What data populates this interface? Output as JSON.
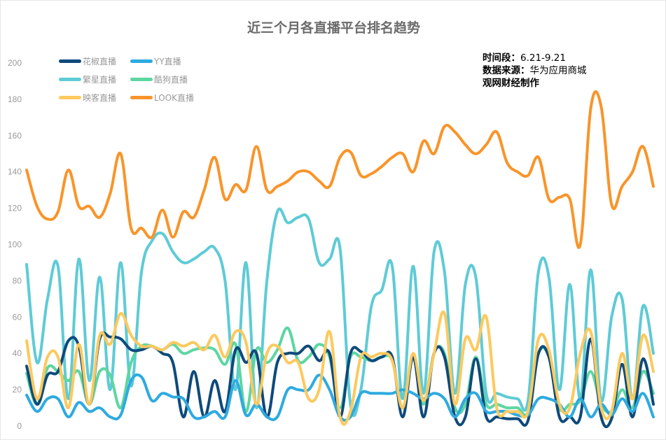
{
  "chart_data": {
    "type": "line",
    "title": "近三个月各直播平台排名趋势",
    "xlabel": "",
    "ylabel": "",
    "ylim": [
      0,
      200
    ],
    "yticks": [
      0,
      20,
      40,
      60,
      80,
      100,
      120,
      140,
      160,
      180,
      200
    ],
    "grid": false,
    "legend_position": "top-left",
    "annotations": {
      "period_label": "时间段：",
      "period_value": "6.21-9.21",
      "source_label": "数据来源：",
      "source_value": "华为应用商城",
      "credit": "观网财经制作"
    },
    "series": [
      {
        "name": "繁星直播",
        "color": "#5ECBD6",
        "values": [
          89,
          35,
          70,
          88,
          15,
          92,
          25,
          82,
          20,
          90,
          22,
          85,
          102,
          106,
          96,
          90,
          92,
          96,
          98,
          80,
          20,
          90,
          10,
          80,
          118,
          112,
          115,
          114,
          90,
          92,
          98,
          12,
          20,
          66,
          75,
          88,
          15,
          88,
          18,
          96,
          85,
          18,
          78,
          82,
          18,
          18,
          16,
          15,
          14,
          85,
          82,
          20,
          78,
          15,
          86,
          14,
          60,
          70,
          15,
          66,
          40
        ]
      },
      {
        "name": "酷狗直播",
        "color": "#5DD6A2",
        "values": [
          29,
          12,
          32,
          30,
          25,
          30,
          12,
          30,
          28,
          10,
          35,
          44,
          44,
          42,
          45,
          40,
          42,
          43,
          42,
          34,
          45,
          8,
          42,
          35,
          42,
          54,
          36,
          38,
          45,
          38,
          10,
          38,
          38,
          36,
          38,
          36,
          10,
          38,
          12,
          40,
          40,
          10,
          12,
          38,
          12,
          12,
          10,
          10,
          8,
          40,
          38,
          10,
          12,
          14,
          30,
          12,
          8,
          20,
          10,
          30,
          18
        ]
      },
      {
        "name": "花椒直播",
        "color": "#0E4A7B",
        "values": [
          33,
          12,
          28,
          30,
          47,
          44,
          12,
          48,
          49,
          48,
          42,
          42,
          44,
          40,
          35,
          5,
          30,
          5,
          25,
          8,
          42,
          35,
          40,
          5,
          35,
          40,
          40,
          44,
          36,
          40,
          5,
          40,
          41,
          36,
          38,
          38,
          5,
          38,
          5,
          40,
          38,
          5,
          5,
          37,
          5,
          5,
          4,
          4,
          3,
          40,
          38,
          5,
          5,
          5,
          48,
          5,
          4,
          34,
          5,
          37,
          12
        ]
      },
      {
        "name": "YY直播",
        "color": "#2EAAE0",
        "values": [
          17,
          8,
          15,
          15,
          5,
          13,
          8,
          10,
          5,
          6,
          25,
          27,
          14,
          18,
          16,
          15,
          5,
          5,
          8,
          5,
          25,
          6,
          12,
          5,
          5,
          20,
          20,
          20,
          28,
          20,
          5,
          5,
          18,
          18,
          18,
          18,
          20,
          18,
          15,
          18,
          15,
          5,
          15,
          18,
          8,
          8,
          8,
          6,
          6,
          15,
          15,
          12,
          5,
          15,
          5,
          12,
          6,
          15,
          8,
          18,
          5
        ]
      },
      {
        "name": "映客直播",
        "color": "#FDC95E",
        "values": [
          47,
          15,
          38,
          38,
          10,
          45,
          12,
          50,
          45,
          62,
          50,
          44,
          44,
          42,
          46,
          44,
          46,
          42,
          50,
          38,
          52,
          46,
          12,
          40,
          44,
          35,
          35,
          15,
          20,
          52,
          5,
          8,
          38,
          38,
          40,
          36,
          10,
          40,
          14,
          40,
          62,
          12,
          48,
          42,
          60,
          10,
          8,
          8,
          8,
          48,
          42,
          12,
          10,
          40,
          52,
          10,
          8,
          40,
          15,
          50,
          30
        ]
      },
      {
        "name": "LOOK直播",
        "color": "#F99429",
        "values": [
          141,
          121,
          114,
          118,
          141,
          121,
          121,
          115,
          128,
          150,
          109,
          109,
          104,
          119,
          104,
          118,
          115,
          130,
          148,
          125,
          133,
          130,
          154,
          130,
          132,
          135,
          140,
          140,
          135,
          132,
          148,
          151,
          138,
          139,
          143,
          148,
          150,
          140,
          157,
          150,
          165,
          162,
          155,
          150,
          155,
          162,
          145,
          140,
          138,
          148,
          125,
          126,
          125,
          100,
          175,
          176,
          122,
          132,
          140,
          154,
          132
        ]
      }
    ],
    "legend_order": [
      2,
      3,
      0,
      1,
      4,
      5
    ]
  }
}
